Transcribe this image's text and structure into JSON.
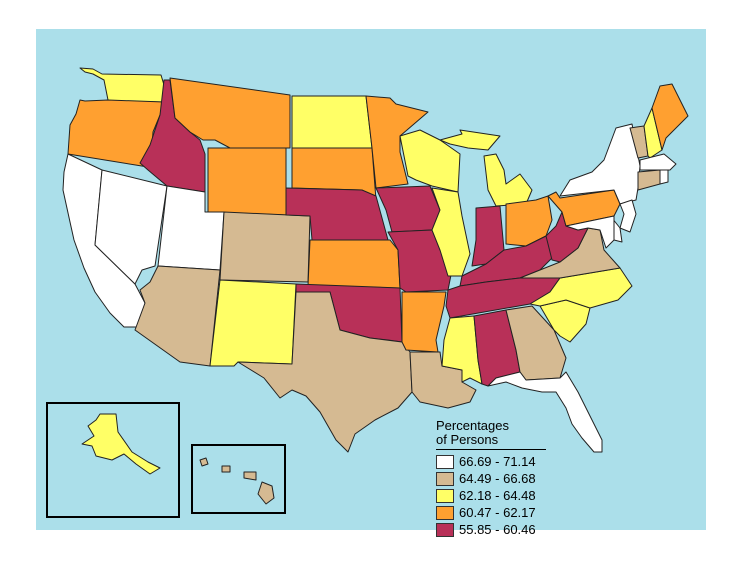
{
  "legend": {
    "title_line1": "Percentages",
    "title_line2": "of Persons",
    "classes": [
      {
        "label": "66.69 - 71.14",
        "color": "#FFFFFF"
      },
      {
        "label": "64.49 - 66.68",
        "color": "#D5BA92"
      },
      {
        "label": "62.18 - 64.48",
        "color": "#FFFF66"
      },
      {
        "label": "60.47 - 62.17",
        "color": "#FFA030"
      },
      {
        "label": "55.85 - 60.46",
        "color": "#B83058"
      }
    ]
  },
  "map": {
    "water_color": "#ABDFEA",
    "state_class": {
      "WA": 2,
      "OR": 3,
      "CA": 0,
      "ID": 4,
      "NV": 0,
      "UT": 0,
      "AZ": 1,
      "MT": 3,
      "WY": 3,
      "CO": 1,
      "NM": 2,
      "ND": 2,
      "SD": 3,
      "NE": 4,
      "KS": 3,
      "OK": 4,
      "TX": 1,
      "MN": 3,
      "IA": 4,
      "MO": 4,
      "AR": 3,
      "LA": 1,
      "WI": 2,
      "IL": 2,
      "MI": 2,
      "IN": 4,
      "OH": 3,
      "KY": 4,
      "TN": 4,
      "MS": 2,
      "AL": 4,
      "GA": 1,
      "FL": 0,
      "SC": 2,
      "NC": 2,
      "VA": 1,
      "WV": 4,
      "PA": 3,
      "NY": 0,
      "VT": 1,
      "NH": 2,
      "ME": 3,
      "MA": 0,
      "CT": 1,
      "RI": 0,
      "NJ": 0,
      "DE": 0,
      "MD": 0,
      "AK": 2,
      "HI": 1
    }
  }
}
